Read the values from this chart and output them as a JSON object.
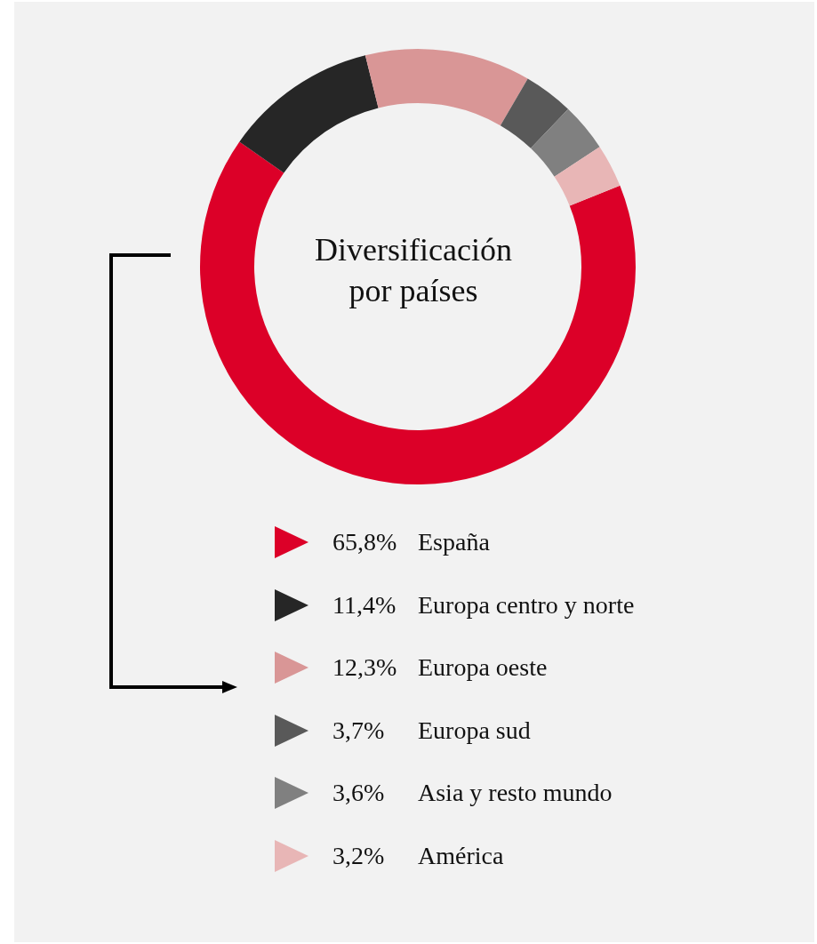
{
  "chart_data": {
    "type": "donut",
    "title": "Diversificación por países",
    "categories": [
      "España",
      "Europa centro y norte",
      "Europa oeste",
      "Europa sud",
      "Asia y resto mundo",
      "América"
    ],
    "values": [
      65.8,
      11.4,
      12.3,
      3.7,
      3.6,
      3.2
    ],
    "value_labels": [
      "65,8%",
      "11,4%",
      "12,3%",
      "3,7%",
      "3,6%",
      "3,2%"
    ],
    "colors": [
      "#dc0028",
      "#262626",
      "#d99696",
      "#595959",
      "#808080",
      "#e8b6b6"
    ],
    "legend": "bottom"
  }
}
